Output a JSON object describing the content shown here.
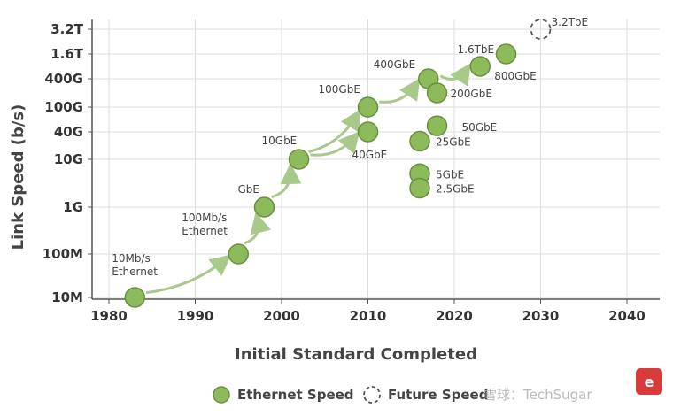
{
  "chart_data": {
    "type": "scatter",
    "xlabel": "Initial Standard Completed",
    "ylabel": "Link Speed (b/s)",
    "xlim": [
      1980,
      2040
    ],
    "x_ticks": [
      "1980",
      "1990",
      "2000",
      "2010",
      "2020",
      "2030",
      "2040"
    ],
    "y_ticks": [
      "10M",
      "100M",
      "1G",
      "10G",
      "40G",
      "100G",
      "400G",
      "1.6T",
      "3.2T"
    ],
    "grid": true,
    "legend_position": "bottom",
    "series": [
      {
        "name": "Ethernet Speed",
        "color": "#8dba5a",
        "points": [
          {
            "x": 1983,
            "y": "10M",
            "label": "10Mb/s Ethernet"
          },
          {
            "x": 1995,
            "y": "100M",
            "label": "100Mb/s Ethernet"
          },
          {
            "x": 1998,
            "y": "1G",
            "label": "GbE"
          },
          {
            "x": 2002,
            "y": "10G",
            "label": "10GbE"
          },
          {
            "x": 2010,
            "y": "100G",
            "label": "100GbE"
          },
          {
            "x": 2010,
            "y": "40G",
            "label": "40GbE"
          },
          {
            "x": 2017,
            "y": "400G",
            "label": "400GbE"
          },
          {
            "x": 2018,
            "y": "200G",
            "label": "200GbE"
          },
          {
            "x": 2018,
            "y": "50G",
            "label": "50GbE"
          },
          {
            "x": 2016,
            "y": "25G",
            "label": "25GbE"
          },
          {
            "x": 2016,
            "y": "5G",
            "label": "5GbE"
          },
          {
            "x": 2016,
            "y": "2.5G",
            "label": "2.5GbE"
          },
          {
            "x": 2023,
            "y": "800G",
            "label": "800GbE"
          },
          {
            "x": 2026,
            "y": "1.6T",
            "label": "1.6TbE"
          }
        ]
      },
      {
        "name": "Future Speed",
        "color": "#555555",
        "points": [
          {
            "x": 2030,
            "y": "3.2T",
            "label": "3.2TbE"
          }
        ]
      }
    ]
  },
  "watermark": "雪球：TechSugar"
}
